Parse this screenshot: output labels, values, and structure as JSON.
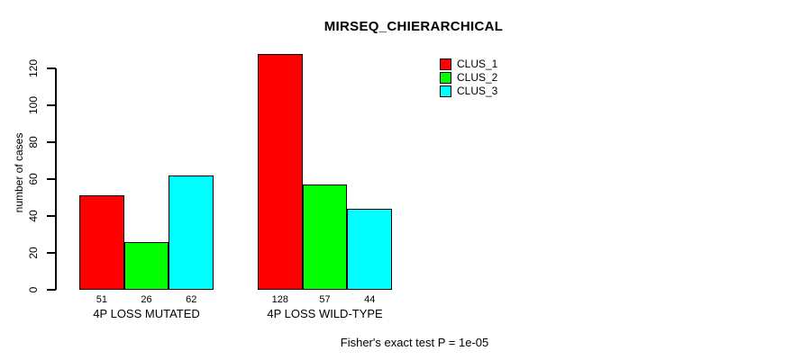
{
  "chart_data": {
    "type": "bar",
    "title": "MIRSEQ_CHIERARCHICAL",
    "xlabel": "",
    "ylabel": "number of cases",
    "categories": [
      "4P LOSS MUTATED",
      "4P LOSS WILD-TYPE"
    ],
    "series": [
      {
        "name": "CLUS_1",
        "color": "#ff0000",
        "values": [
          51,
          128
        ]
      },
      {
        "name": "CLUS_2",
        "color": "#00ff00",
        "values": [
          26,
          57
        ]
      },
      {
        "name": "CLUS_3",
        "color": "#00ffff",
        "values": [
          62,
          44
        ]
      }
    ],
    "yticks": [
      0,
      20,
      40,
      60,
      80,
      100,
      120
    ],
    "ylim": [
      0,
      131
    ],
    "bar_value_labels": [
      [
        "51",
        "26",
        "62"
      ],
      [
        "128",
        "57",
        "44"
      ]
    ],
    "legend_position": "top-right",
    "grid": false,
    "caption": "Fisher's exact test P = 1e-05"
  },
  "colors": {
    "background": "#ffffff",
    "axis": "#000000",
    "text": "#000000",
    "bar_border": "#000000"
  }
}
